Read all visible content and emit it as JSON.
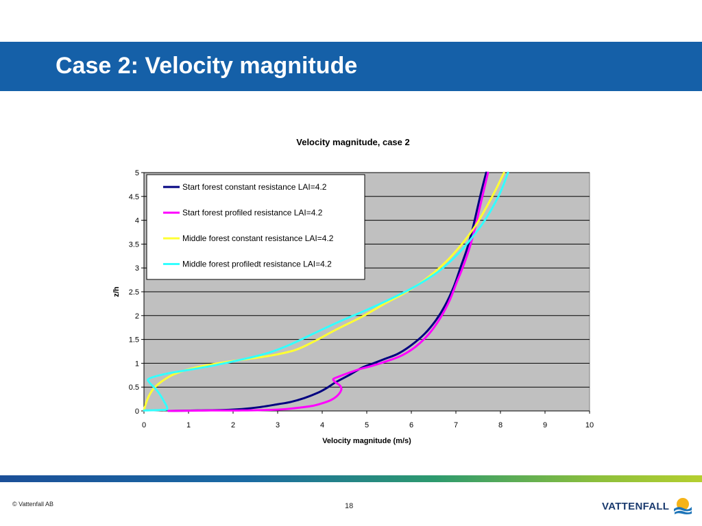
{
  "slide": {
    "title": "Case 2: Velocity magnitude",
    "header_color": "#1560a8"
  },
  "footer": {
    "copyright": "© Vattenfall AB",
    "page_number": "18",
    "brand_name": "VATTENFALL",
    "logo_icon": "vattenfall-sun-wave-icon"
  },
  "chart_data": {
    "type": "line",
    "title": "Velocity magnitude, case 2",
    "xlabel": "Velocity magnitude (m/s)",
    "ylabel": "z/h",
    "xlim": [
      0,
      10
    ],
    "ylim": [
      0,
      5
    ],
    "xticks": [
      "0",
      "1",
      "2",
      "3",
      "4",
      "5",
      "6",
      "7",
      "8",
      "9",
      "10"
    ],
    "yticks": [
      "0",
      "0.5",
      "1",
      "1.5",
      "2",
      "2.5",
      "3",
      "3.5",
      "4",
      "4.5",
      "5"
    ],
    "grid": "horizontal",
    "plot_background": "#c0c0c0",
    "legend_position": "top-left",
    "series": [
      {
        "name": "Start forest constant resistance LAI=4.2",
        "color": "#000080",
        "points": [
          [
            0.55,
            0.0
          ],
          [
            1.2,
            0.01
          ],
          [
            1.8,
            0.02
          ],
          [
            2.2,
            0.04
          ],
          [
            2.6,
            0.08
          ],
          [
            3.0,
            0.14
          ],
          [
            3.3,
            0.19
          ],
          [
            3.6,
            0.27
          ],
          [
            3.9,
            0.38
          ],
          [
            4.1,
            0.48
          ],
          [
            4.3,
            0.6
          ],
          [
            4.6,
            0.75
          ],
          [
            4.9,
            0.91
          ],
          [
            5.15,
            1.0
          ],
          [
            5.4,
            1.09
          ],
          [
            5.7,
            1.2
          ],
          [
            6.0,
            1.38
          ],
          [
            6.3,
            1.62
          ],
          [
            6.55,
            1.9
          ],
          [
            6.75,
            2.2
          ],
          [
            6.95,
            2.6
          ],
          [
            7.1,
            3.0
          ],
          [
            7.25,
            3.4
          ],
          [
            7.37,
            3.8
          ],
          [
            7.47,
            4.2
          ],
          [
            7.57,
            4.6
          ],
          [
            7.68,
            5.0
          ]
        ]
      },
      {
        "name": "Start forest profiled resistance LAI=4.2",
        "color": "#ff00ff",
        "points": [
          [
            0.55,
            0.0
          ],
          [
            1.5,
            0.01
          ],
          [
            2.2,
            0.01
          ],
          [
            2.8,
            0.02
          ],
          [
            3.2,
            0.04
          ],
          [
            3.5,
            0.07
          ],
          [
            3.8,
            0.11
          ],
          [
            4.0,
            0.16
          ],
          [
            4.2,
            0.23
          ],
          [
            4.35,
            0.33
          ],
          [
            4.43,
            0.45
          ],
          [
            4.4,
            0.53
          ],
          [
            4.3,
            0.6
          ],
          [
            4.25,
            0.67
          ],
          [
            4.4,
            0.73
          ],
          [
            4.6,
            0.8
          ],
          [
            4.85,
            0.88
          ],
          [
            5.1,
            0.94
          ],
          [
            5.5,
            1.06
          ],
          [
            5.8,
            1.17
          ],
          [
            6.1,
            1.35
          ],
          [
            6.4,
            1.62
          ],
          [
            6.65,
            1.95
          ],
          [
            6.85,
            2.3
          ],
          [
            7.02,
            2.7
          ],
          [
            7.15,
            3.0
          ],
          [
            7.3,
            3.4
          ],
          [
            7.42,
            3.8
          ],
          [
            7.52,
            4.2
          ],
          [
            7.62,
            4.6
          ],
          [
            7.72,
            5.0
          ]
        ]
      },
      {
        "name": "Middle forest constant resistance LAI=4.2",
        "color": "#ffff33",
        "points": [
          [
            0.0,
            0.02
          ],
          [
            0.08,
            0.25
          ],
          [
            0.2,
            0.45
          ],
          [
            0.4,
            0.62
          ],
          [
            0.7,
            0.78
          ],
          [
            1.2,
            0.92
          ],
          [
            1.8,
            1.02
          ],
          [
            2.4,
            1.1
          ],
          [
            2.9,
            1.17
          ],
          [
            3.4,
            1.28
          ],
          [
            3.8,
            1.45
          ],
          [
            4.3,
            1.7
          ],
          [
            4.9,
            1.98
          ],
          [
            5.4,
            2.25
          ],
          [
            5.9,
            2.5
          ],
          [
            6.4,
            2.82
          ],
          [
            6.8,
            3.15
          ],
          [
            7.15,
            3.52
          ],
          [
            7.45,
            3.9
          ],
          [
            7.7,
            4.3
          ],
          [
            7.9,
            4.65
          ],
          [
            8.08,
            5.0
          ]
        ]
      },
      {
        "name": "Middle forest profiledt resistance LAI=4.2",
        "color": "#33ffff",
        "points": [
          [
            0.0,
            0.01
          ],
          [
            0.35,
            0.02
          ],
          [
            0.52,
            0.04
          ],
          [
            0.45,
            0.2
          ],
          [
            0.3,
            0.42
          ],
          [
            0.12,
            0.6
          ],
          [
            0.12,
            0.68
          ],
          [
            0.5,
            0.78
          ],
          [
            1.0,
            0.86
          ],
          [
            1.6,
            0.96
          ],
          [
            2.2,
            1.08
          ],
          [
            2.8,
            1.22
          ],
          [
            3.3,
            1.4
          ],
          [
            3.8,
            1.62
          ],
          [
            4.4,
            1.88
          ],
          [
            5.0,
            2.12
          ],
          [
            5.6,
            2.38
          ],
          [
            6.1,
            2.62
          ],
          [
            6.6,
            2.92
          ],
          [
            7.0,
            3.25
          ],
          [
            7.35,
            3.62
          ],
          [
            7.65,
            4.0
          ],
          [
            7.9,
            4.4
          ],
          [
            8.05,
            4.7
          ],
          [
            8.17,
            5.0
          ]
        ]
      }
    ]
  }
}
